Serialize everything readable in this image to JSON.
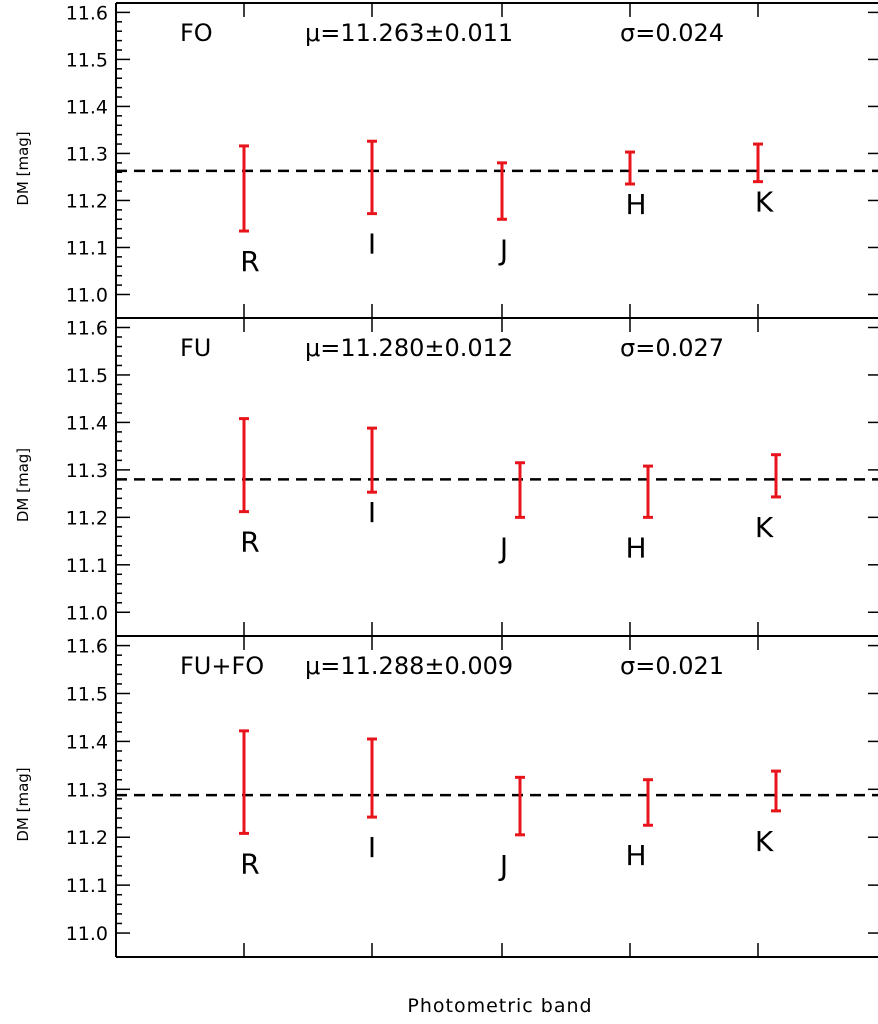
{
  "chart_data": [
    {
      "type": "errorbar",
      "ylabel": "DM [mag]",
      "ylim": [
        10.95,
        11.62
      ],
      "yticks": [
        "11.0",
        "11.1",
        "11.2",
        "11.3",
        "11.4",
        "11.5",
        "11.6"
      ],
      "annotation": {
        "name": "FO",
        "mu": "μ=11.263±0.011",
        "sigma": "σ=0.024"
      },
      "mean": 11.263,
      "bands": [
        {
          "label": "R",
          "low": 11.135,
          "high": 11.316
        },
        {
          "label": "I",
          "low": 11.172,
          "high": 11.326
        },
        {
          "label": "J",
          "low": 11.16,
          "high": 11.28
        },
        {
          "label": "H",
          "low": 11.235,
          "high": 11.303
        },
        {
          "label": "K",
          "low": 11.24,
          "high": 11.32
        }
      ]
    },
    {
      "type": "errorbar",
      "ylabel": "DM [mag]",
      "ylim": [
        10.95,
        11.62
      ],
      "yticks": [
        "11.0",
        "11.1",
        "11.2",
        "11.3",
        "11.4",
        "11.5",
        "11.6"
      ],
      "annotation": {
        "name": "FU",
        "mu": "μ=11.280±0.012",
        "sigma": "σ=0.027"
      },
      "mean": 11.28,
      "bands": [
        {
          "label": "R",
          "low": 11.212,
          "high": 11.408
        },
        {
          "label": "I",
          "low": 11.253,
          "high": 11.388
        },
        {
          "label": "J",
          "low": 11.2,
          "high": 11.315
        },
        {
          "label": "H",
          "low": 11.2,
          "high": 11.308
        },
        {
          "label": "K",
          "low": 11.243,
          "high": 11.332
        }
      ]
    },
    {
      "type": "errorbar",
      "ylabel": "DM [mag]",
      "ylim": [
        10.95,
        11.62
      ],
      "yticks": [
        "11.0",
        "11.1",
        "11.2",
        "11.3",
        "11.4",
        "11.5",
        "11.6"
      ],
      "annotation": {
        "name": "FU+FO",
        "mu": "μ=11.288±0.009",
        "sigma": "σ=0.021"
      },
      "mean": 11.288,
      "bands": [
        {
          "label": "R",
          "low": 11.208,
          "high": 11.422
        },
        {
          "label": "I",
          "low": 11.242,
          "high": 11.405
        },
        {
          "label": "J",
          "low": 11.205,
          "high": 11.325
        },
        {
          "label": "H",
          "low": 11.225,
          "high": 11.32
        },
        {
          "label": "K",
          "low": 11.255,
          "high": 11.338
        }
      ]
    }
  ],
  "xlabel": "Photometric band",
  "colors": {
    "errorbar": "#e8141b",
    "axis": "#000000",
    "mean_line": "#000000"
  }
}
